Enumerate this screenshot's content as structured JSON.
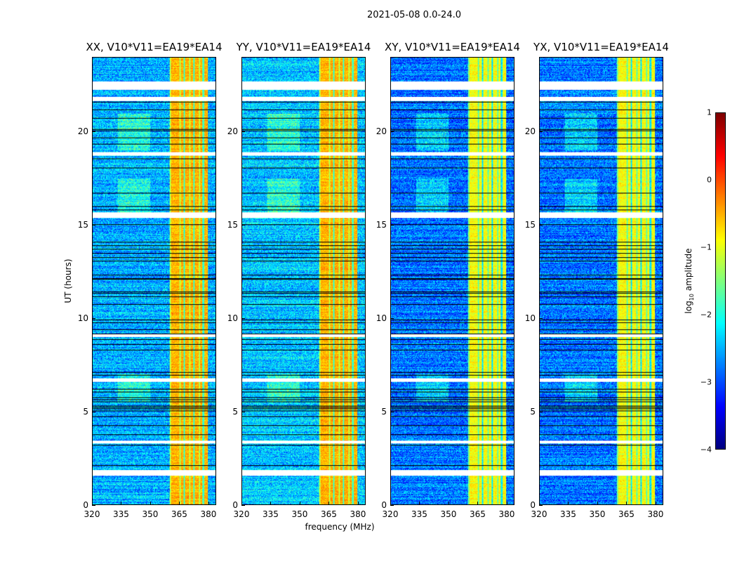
{
  "chart_data": {
    "type": "heatmap",
    "title": "2021-05-08 0.0-24.0",
    "xlabel": "frequency (MHz)",
    "ylabel": "UT (hours)",
    "xlim": [
      320,
      384
    ],
    "ylim": [
      0,
      24
    ],
    "xticks": [
      320,
      335,
      350,
      365,
      380
    ],
    "yticks": [
      0,
      5,
      10,
      15,
      20
    ],
    "panels": [
      {
        "title": "XX, V10*V11=EA19*EA14",
        "band_level": -0.5,
        "background_level": -2.5
      },
      {
        "title": "YY, V10*V11=EA19*EA14",
        "band_level": -0.5,
        "background_level": -2.4
      },
      {
        "title": "XY, V10*V11=EA19*EA14",
        "band_level": -0.9,
        "background_level": -2.8
      },
      {
        "title": "YX, V10*V11=EA19*EA14",
        "band_level": -0.9,
        "background_level": -2.8
      }
    ],
    "strong_band_mhz": [
      360,
      380
    ],
    "flagged_ut_ranges": [
      [
        22.3,
        22.75
      ],
      [
        21.7,
        21.9
      ],
      [
        18.75,
        18.95
      ],
      [
        15.4,
        15.7
      ],
      [
        9.0,
        9.15
      ],
      [
        6.6,
        6.8
      ],
      [
        3.3,
        3.45
      ],
      [
        1.55,
        1.85
      ]
    ],
    "colorbar": {
      "colormap": "jet",
      "range": [
        -4,
        1
      ],
      "ticks": [
        1,
        0,
        -1,
        -2,
        -3,
        -4
      ],
      "label_prefix": "log",
      "label_sub": "10",
      "label_suffix": " amplitude"
    }
  }
}
